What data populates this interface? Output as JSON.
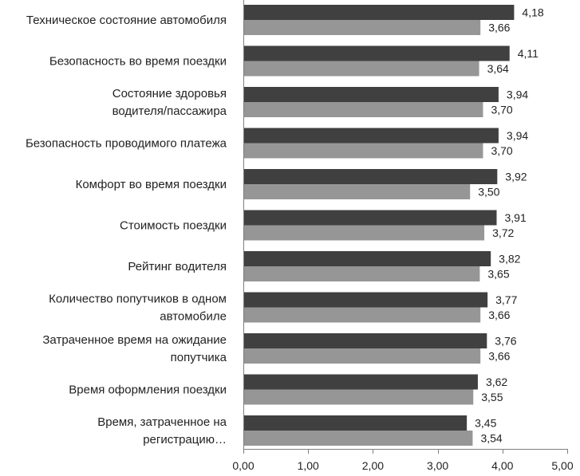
{
  "chart_data": {
    "type": "bar",
    "orientation": "horizontal",
    "title": "",
    "xlabel": "",
    "ylabel": "",
    "xlim": [
      0,
      5
    ],
    "x_ticks": [
      "0,00",
      "1,00",
      "2,00",
      "3,00",
      "4,00",
      "5,00"
    ],
    "x_tick_values": [
      0,
      1,
      2,
      3,
      4,
      5
    ],
    "grid": false,
    "legend": "none",
    "categories": [
      [
        "Техническое состояние автомобиля"
      ],
      [
        "Безопасность во время поездки"
      ],
      [
        "Состояние здоровья",
        "водителя/пассажира"
      ],
      [
        "Безопасность проводимого платежа"
      ],
      [
        "Комфорт во время поездки"
      ],
      [
        "Стоимость поездки"
      ],
      [
        "Рейтинг водителя"
      ],
      [
        "Количество попутчиков в одном",
        "автомобиле"
      ],
      [
        "Затраченное время на ожидание",
        "попутчика"
      ],
      [
        "Время оформления поездки"
      ],
      [
        "Время, затраченное на",
        "регистрацию…"
      ]
    ],
    "series": [
      {
        "name": "series-1",
        "color": "#404040",
        "values": [
          4.18,
          4.11,
          3.94,
          3.94,
          3.92,
          3.91,
          3.82,
          3.77,
          3.76,
          3.62,
          3.45
        ],
        "labels": [
          "4,18",
          "4,11",
          "3,94",
          "3,94",
          "3,92",
          "3,91",
          "3,82",
          "3,77",
          "3,76",
          "3,62",
          "3,45"
        ]
      },
      {
        "name": "series-2",
        "color": "#969696",
        "values": [
          3.66,
          3.64,
          3.7,
          3.7,
          3.5,
          3.72,
          3.65,
          3.66,
          3.66,
          3.55,
          3.54
        ],
        "labels": [
          "3,66",
          "3,64",
          "3,70",
          "3,70",
          "3,50",
          "3,72",
          "3,65",
          "3,66",
          "3,66",
          "3,55",
          "3,54"
        ]
      }
    ]
  }
}
